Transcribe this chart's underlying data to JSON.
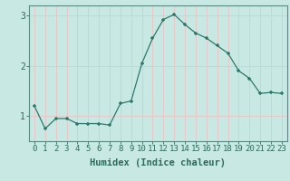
{
  "xlabel": "Humidex (Indice chaleur)",
  "ylabel": "",
  "x": [
    0,
    1,
    2,
    3,
    4,
    5,
    6,
    7,
    8,
    9,
    10,
    11,
    12,
    13,
    14,
    15,
    16,
    17,
    18,
    19,
    20,
    21,
    22,
    23
  ],
  "y": [
    1.2,
    0.75,
    0.95,
    0.95,
    0.85,
    0.85,
    0.85,
    0.82,
    1.25,
    1.3,
    2.05,
    2.55,
    2.92,
    3.02,
    2.82,
    2.65,
    2.55,
    2.4,
    2.25,
    1.9,
    1.75,
    1.45,
    1.47,
    1.45
  ],
  "ylim": [
    0.5,
    3.2
  ],
  "xlim": [
    -0.5,
    23.5
  ],
  "yticks": [
    1,
    2,
    3
  ],
  "line_color": "#2d7a6a",
  "marker": "+",
  "bg_color": "#c8e8e4",
  "grid_color": "#e8c8c8",
  "tick_color": "#2d6b5a",
  "spine_color": "#5a8a80",
  "label_fontsize": 7,
  "tick_fontsize": 6.5
}
